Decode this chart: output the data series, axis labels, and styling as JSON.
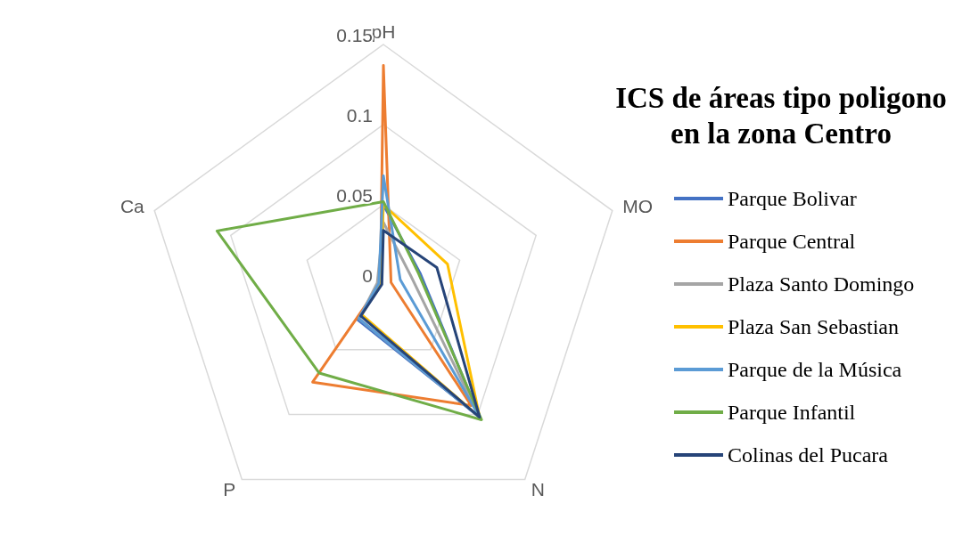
{
  "chart_data": {
    "type": "radar",
    "title": "ICS de áreas tipo poligono en la zona Centro",
    "categories": [
      "pH",
      "MO",
      "N",
      "P",
      "Ca"
    ],
    "ylim": [
      0,
      0.15
    ],
    "yticks": [
      0,
      0.05,
      0.1,
      0.15
    ],
    "grid": true,
    "legend": "right",
    "marker": "none",
    "series": [
      {
        "name": "Parque Bolivar",
        "color": "#4472c4",
        "values": [
          0.05,
          0.024,
          0.102,
          0.027,
          0.003
        ]
      },
      {
        "name": "Parque Central",
        "color": "#ed7d31",
        "values": [
          0.137,
          0.005,
          0.093,
          0.075,
          0.002
        ]
      },
      {
        "name": "Plaza Santo Domingo",
        "color": "#a5a5a5",
        "values": [
          0.039,
          0.018,
          0.102,
          0.026,
          0.004
        ]
      },
      {
        "name": "Plaza San Sebastian",
        "color": "#ffc000",
        "values": [
          0.05,
          0.042,
          0.102,
          0.023,
          0.002
        ]
      },
      {
        "name": "Parque de la Música",
        "color": "#5b9bd5",
        "values": [
          0.068,
          0.011,
          0.102,
          0.026,
          0.003
        ]
      },
      {
        "name": "Parque Infantil",
        "color": "#70ad47",
        "values": [
          0.052,
          0.023,
          0.104,
          0.068,
          0.109
        ]
      },
      {
        "name": "Colinas del Pucara",
        "color": "#264478",
        "values": [
          0.034,
          0.035,
          0.102,
          0.024,
          0.001
        ]
      }
    ]
  }
}
